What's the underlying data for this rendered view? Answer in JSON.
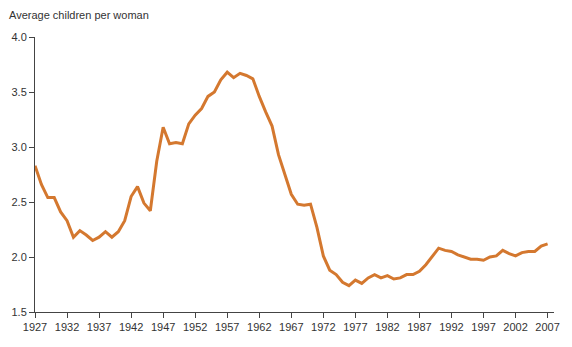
{
  "chart_data": {
    "type": "line",
    "y_label": "Average children per woman",
    "x": [
      1927,
      1928,
      1929,
      1930,
      1931,
      1932,
      1933,
      1934,
      1935,
      1936,
      1937,
      1938,
      1939,
      1940,
      1941,
      1942,
      1943,
      1944,
      1945,
      1946,
      1947,
      1948,
      1949,
      1950,
      1951,
      1952,
      1953,
      1954,
      1955,
      1956,
      1957,
      1958,
      1959,
      1960,
      1961,
      1962,
      1963,
      1964,
      1965,
      1966,
      1967,
      1968,
      1969,
      1970,
      1971,
      1972,
      1973,
      1974,
      1975,
      1976,
      1977,
      1978,
      1979,
      1980,
      1981,
      1982,
      1983,
      1984,
      1985,
      1986,
      1987,
      1988,
      1989,
      1990,
      1991,
      1992,
      1993,
      1994,
      1995,
      1996,
      1997,
      1998,
      1999,
      2000,
      2001,
      2002,
      2003,
      2004,
      2005,
      2006,
      2007
    ],
    "values": [
      2.83,
      2.66,
      2.54,
      2.54,
      2.41,
      2.33,
      2.18,
      2.24,
      2.2,
      2.15,
      2.18,
      2.23,
      2.18,
      2.23,
      2.33,
      2.55,
      2.64,
      2.49,
      2.42,
      2.87,
      3.18,
      3.03,
      3.04,
      3.03,
      3.21,
      3.29,
      3.35,
      3.46,
      3.5,
      3.61,
      3.68,
      3.63,
      3.67,
      3.65,
      3.62,
      3.46,
      3.32,
      3.19,
      2.93,
      2.74,
      2.57,
      2.48,
      2.47,
      2.48,
      2.27,
      2.01,
      1.88,
      1.84,
      1.77,
      1.74,
      1.79,
      1.76,
      1.81,
      1.84,
      1.81,
      1.83,
      1.8,
      1.81,
      1.84,
      1.84,
      1.87,
      1.93,
      2.01,
      2.08,
      2.06,
      2.05,
      2.02,
      2.0,
      1.98,
      1.98,
      1.97,
      2.0,
      2.01,
      2.06,
      2.03,
      2.01,
      2.04,
      2.05,
      2.05,
      2.1,
      2.12
    ],
    "color": "#d4782f",
    "xlim": [
      1927,
      2008
    ],
    "xticks": [
      1927,
      1932,
      1937,
      1942,
      1947,
      1952,
      1957,
      1962,
      1967,
      1972,
      1977,
      1982,
      1987,
      1992,
      1997,
      2002,
      2007
    ],
    "ylim": [
      1.5,
      4.0
    ],
    "yticks": [
      1.5,
      {
        "value": 2.0,
        "label": "2.0"
      },
      2.5,
      {
        "value": 3.0,
        "label": "3.0"
      },
      3.5,
      {
        "value": 4.0,
        "label": "4.0"
      }
    ],
    "grid": false
  }
}
